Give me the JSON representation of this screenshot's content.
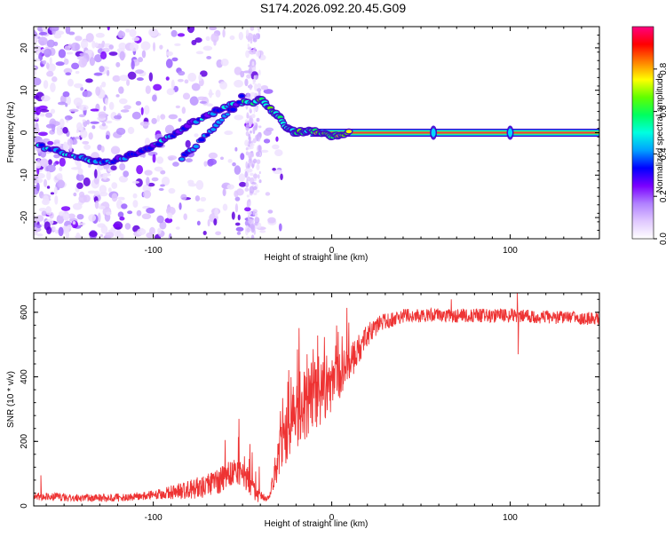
{
  "title": "S174.2026.092.20.45.G09",
  "chart_data": [
    {
      "type": "heatmap",
      "name": "spectrogram",
      "xlabel": "Height of straight line (km)",
      "ylabel": "Frequency (Hz)",
      "xlim": [
        -167,
        150
      ],
      "ylim": [
        -25,
        25
      ],
      "xticks": [
        -100,
        0,
        100
      ],
      "xtick_labels": [
        "-100",
        "0",
        "100"
      ],
      "yticks": [
        -20,
        -10,
        0,
        10,
        20
      ],
      "ytick_labels": [
        "-20",
        "-10",
        "0",
        "10",
        "20"
      ],
      "colorbar": {
        "label": "Normalized spectral amplitude",
        "range": [
          0,
          1
        ],
        "ticks": [
          0.0,
          0.2,
          0.4,
          0.6,
          0.8
        ],
        "tick_labels": [
          "0.0",
          "0.2",
          "0.4",
          "0.6",
          "0.8"
        ],
        "colors": [
          "#ffffff",
          "#e0c8ff",
          "#b080ff",
          "#7a00ff",
          "#0000ff",
          "#00a0ff",
          "#00ffe0",
          "#00ff60",
          "#60ff00",
          "#ffff00",
          "#ff8000",
          "#ff0000",
          "#ff0080"
        ]
      },
      "ridge": {
        "x": [
          -164,
          -150,
          -140,
          -125,
          -110,
          -100,
          -90,
          -80,
          -70,
          -60,
          -52,
          -45,
          -40,
          -36,
          -30,
          -25,
          -20,
          -10,
          0,
          10,
          20,
          40,
          60,
          80,
          100,
          120,
          150
        ],
        "y": [
          -3,
          -5,
          -6,
          -7,
          -5,
          -3,
          -1,
          2,
          4,
          6,
          7,
          7,
          8,
          6,
          4,
          1,
          0,
          0.5,
          -1,
          0,
          0,
          0,
          0,
          0,
          0,
          0,
          0
        ]
      },
      "branch2": {
        "x": [
          -84,
          -78,
          -72,
          -66,
          -60,
          -54,
          -50
        ],
        "y": [
          -6,
          -4,
          -1,
          1,
          4,
          6,
          9
        ]
      }
    },
    {
      "type": "line",
      "name": "snr",
      "xlabel": "Height of straight line (km)",
      "ylabel": "SNR (10 * v/v)",
      "xlim": [
        -167,
        150
      ],
      "ylim": [
        0,
        660
      ],
      "xticks": [
        -100,
        0,
        100
      ],
      "xtick_labels": [
        "-100",
        "0",
        "100"
      ],
      "yticks": [
        0,
        200,
        400,
        600
      ],
      "ytick_labels": [
        "0",
        "200",
        "400",
        "600"
      ],
      "color": "#ee3333",
      "envelope": {
        "x": [
          -167,
          -140,
          -120,
          -100,
          -80,
          -65,
          -55,
          -48,
          -42,
          -35,
          -30,
          -25,
          -20,
          -10,
          0,
          10,
          20,
          30,
          40,
          60,
          80,
          100,
          120,
          150
        ],
        "y": [
          30,
          25,
          25,
          35,
          50,
          70,
          110,
          90,
          30,
          25,
          150,
          230,
          280,
          330,
          370,
          440,
          530,
          575,
          590,
          590,
          590,
          590,
          585,
          580
        ]
      },
      "noise": {
        "x": [
          -167,
          -100,
          -60,
          -45,
          -35,
          -30,
          -20,
          -10,
          0,
          20,
          40,
          100,
          150
        ],
        "y": [
          12,
          14,
          45,
          40,
          5,
          70,
          110,
          100,
          80,
          35,
          22,
          22,
          20
        ]
      },
      "spikes": [
        {
          "x": -163,
          "y": 95
        },
        {
          "x": -52,
          "y": 270
        },
        {
          "x": 67,
          "y": 640
        },
        {
          "x": 104,
          "y": 660
        },
        {
          "x": 104.5,
          "y": 470
        }
      ]
    }
  ]
}
